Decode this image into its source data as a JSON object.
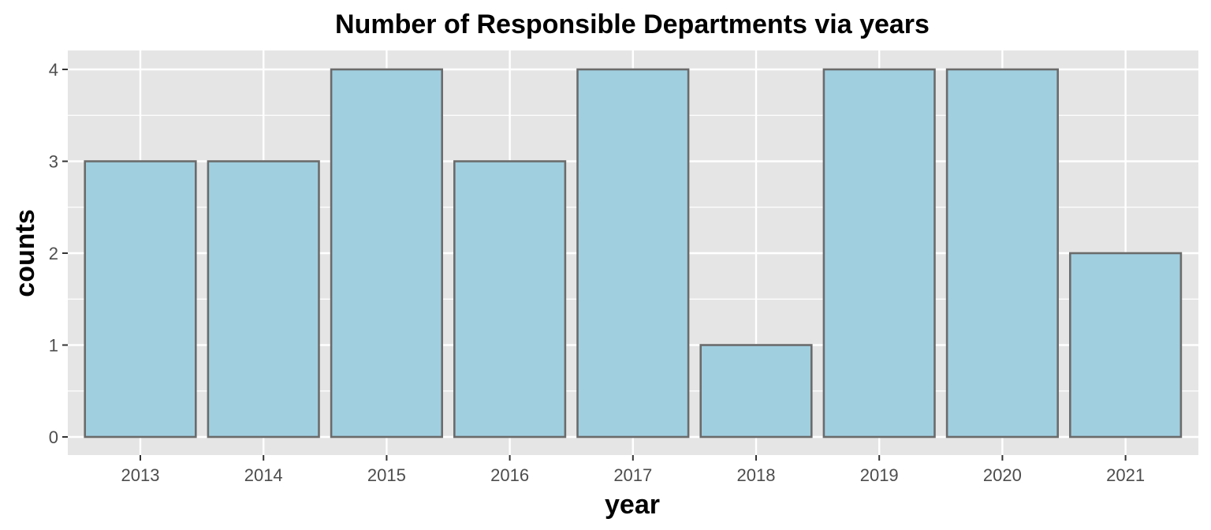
{
  "chart_data": {
    "type": "bar",
    "title": "Number of Responsible Departments via years",
    "xlabel": "year",
    "ylabel": "counts",
    "categories": [
      "2013",
      "2014",
      "2015",
      "2016",
      "2017",
      "2018",
      "2019",
      "2020",
      "2021"
    ],
    "values": [
      3,
      3,
      4,
      3,
      4,
      1,
      4,
      4,
      2
    ],
    "ylim": [
      0,
      4
    ],
    "yticks": [
      0,
      1,
      2,
      3,
      4
    ],
    "grid": true,
    "legend": "none",
    "colors": {
      "bar_fill": "#a0cfe0",
      "bar_stroke": "#6b6b6b",
      "panel_background": "#e5e5e5",
      "grid_line": "#ffffff",
      "tick_text": "#4d4d4d"
    }
  }
}
